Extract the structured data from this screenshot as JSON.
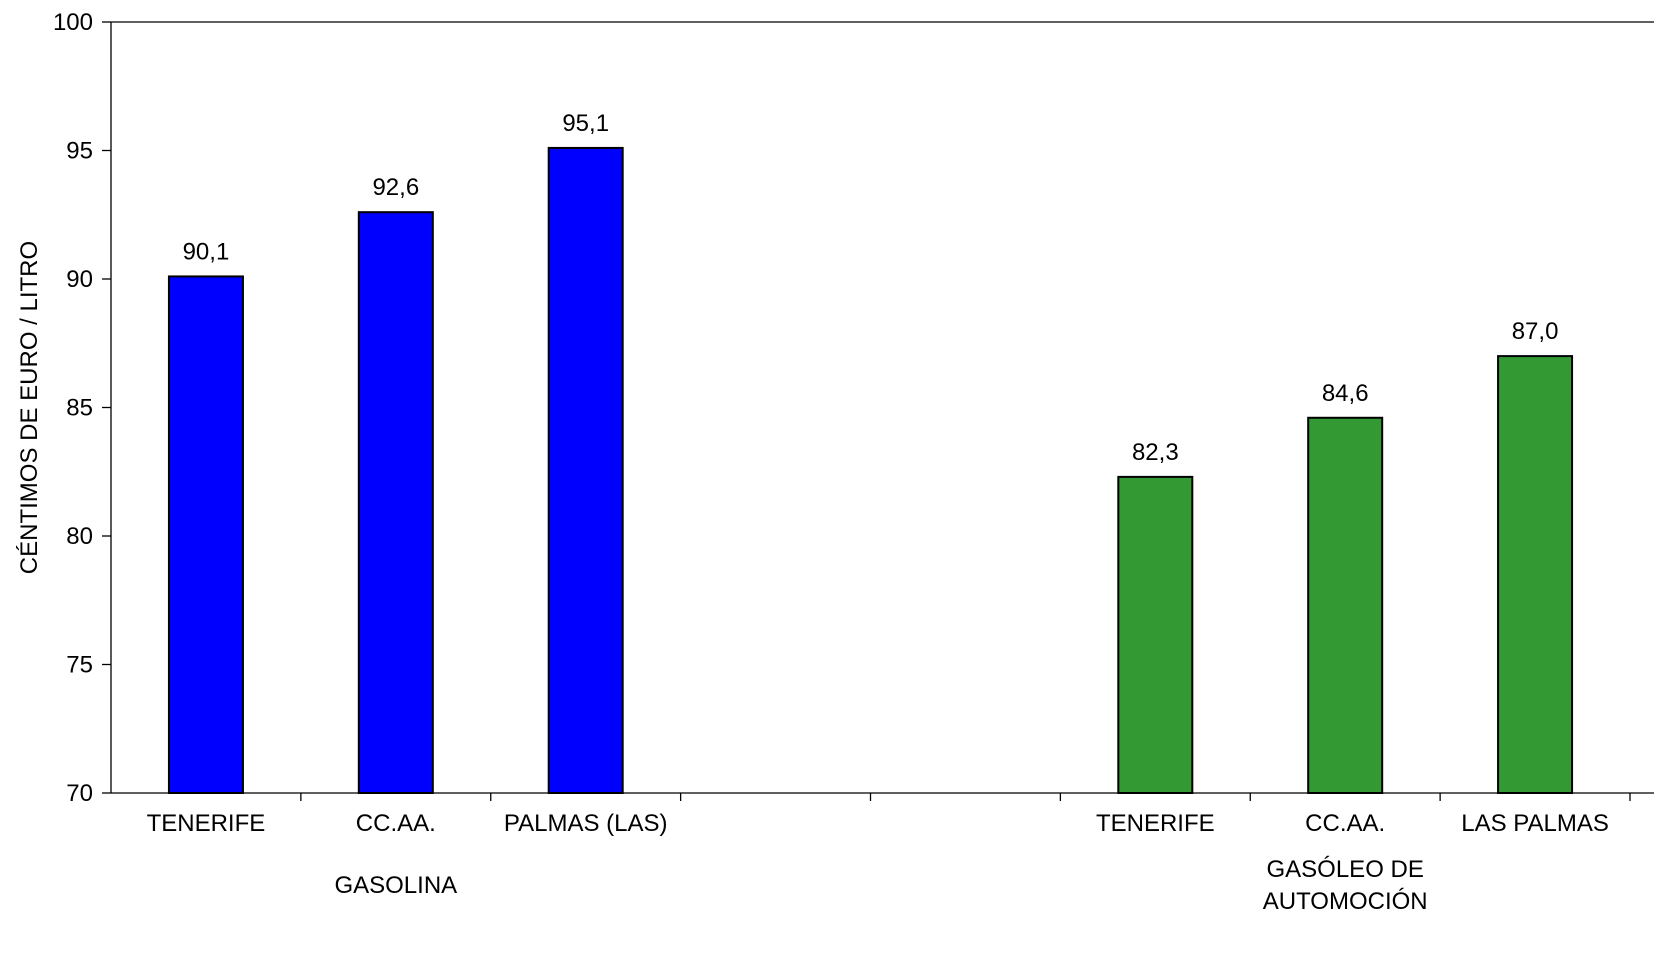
{
  "chart_data": {
    "type": "bar",
    "title": "",
    "ylabel": "CÉNTIMOS DE EURO / LITRO",
    "ylim": [
      70,
      100
    ],
    "yticks": [
      70,
      75,
      80,
      85,
      90,
      95,
      100
    ],
    "grid": false,
    "legend": "none",
    "slots": 8,
    "groups": [
      {
        "name": "GASOLINA",
        "name_lines": [
          "GASOLINA"
        ],
        "color": "#0000FF",
        "bars": [
          {
            "label": "TENERIFE",
            "value": 90.1,
            "value_label": "90,1",
            "slot": 0
          },
          {
            "label": "CC.AA.",
            "value": 92.6,
            "value_label": "92,6",
            "slot": 1
          },
          {
            "label": "PALMAS (LAS)",
            "value": 95.1,
            "value_label": "95,1",
            "slot": 2
          }
        ]
      },
      {
        "name": "GASÓLEO DE AUTOMOCIÓN",
        "name_lines": [
          "GASÓLEO DE",
          "AUTOMOCIÓN"
        ],
        "color": "#339933",
        "bars": [
          {
            "label": "TENERIFE",
            "value": 82.3,
            "value_label": "82,3",
            "slot": 5
          },
          {
            "label": "CC.AA.",
            "value": 84.6,
            "value_label": "84,6",
            "slot": 6
          },
          {
            "label": "LAS PALMAS",
            "value": 87.0,
            "value_label": "87,0",
            "slot": 7
          }
        ]
      }
    ]
  }
}
